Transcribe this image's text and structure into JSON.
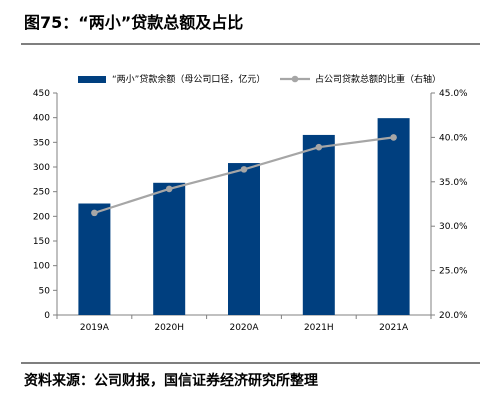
{
  "figure_title": "图75：“两小”贷款总额及占比",
  "source_text": "资料来源：公司财报，国信证券经济研究所整理",
  "chart_data": {
    "type": "bar+line",
    "categories": [
      "2019A",
      "2020H",
      "2020A",
      "2021H",
      "2021A"
    ],
    "series": [
      {
        "name": "“两小”贷款余额（母公司口径，亿元）",
        "type": "bar",
        "axis": "left",
        "color": "#003F7F",
        "values": [
          226,
          268,
          308,
          365,
          399
        ]
      },
      {
        "name": "占公司贷款总额的比重（右轴）",
        "type": "line",
        "axis": "right",
        "color": "#A6A6A6",
        "values": [
          31.5,
          34.2,
          36.4,
          38.9,
          40.0
        ]
      }
    ],
    "y_left": {
      "min": 0,
      "max": 450,
      "step": 50,
      "ticks": [
        "0",
        "50",
        "100",
        "150",
        "200",
        "250",
        "300",
        "350",
        "400",
        "450"
      ]
    },
    "y_right": {
      "min": 20,
      "max": 45,
      "step": 5,
      "ticks": [
        "20.0%",
        "25.0%",
        "30.0%",
        "35.0%",
        "40.0%",
        "45.0%"
      ]
    },
    "legend_position": "top",
    "grid": false
  }
}
